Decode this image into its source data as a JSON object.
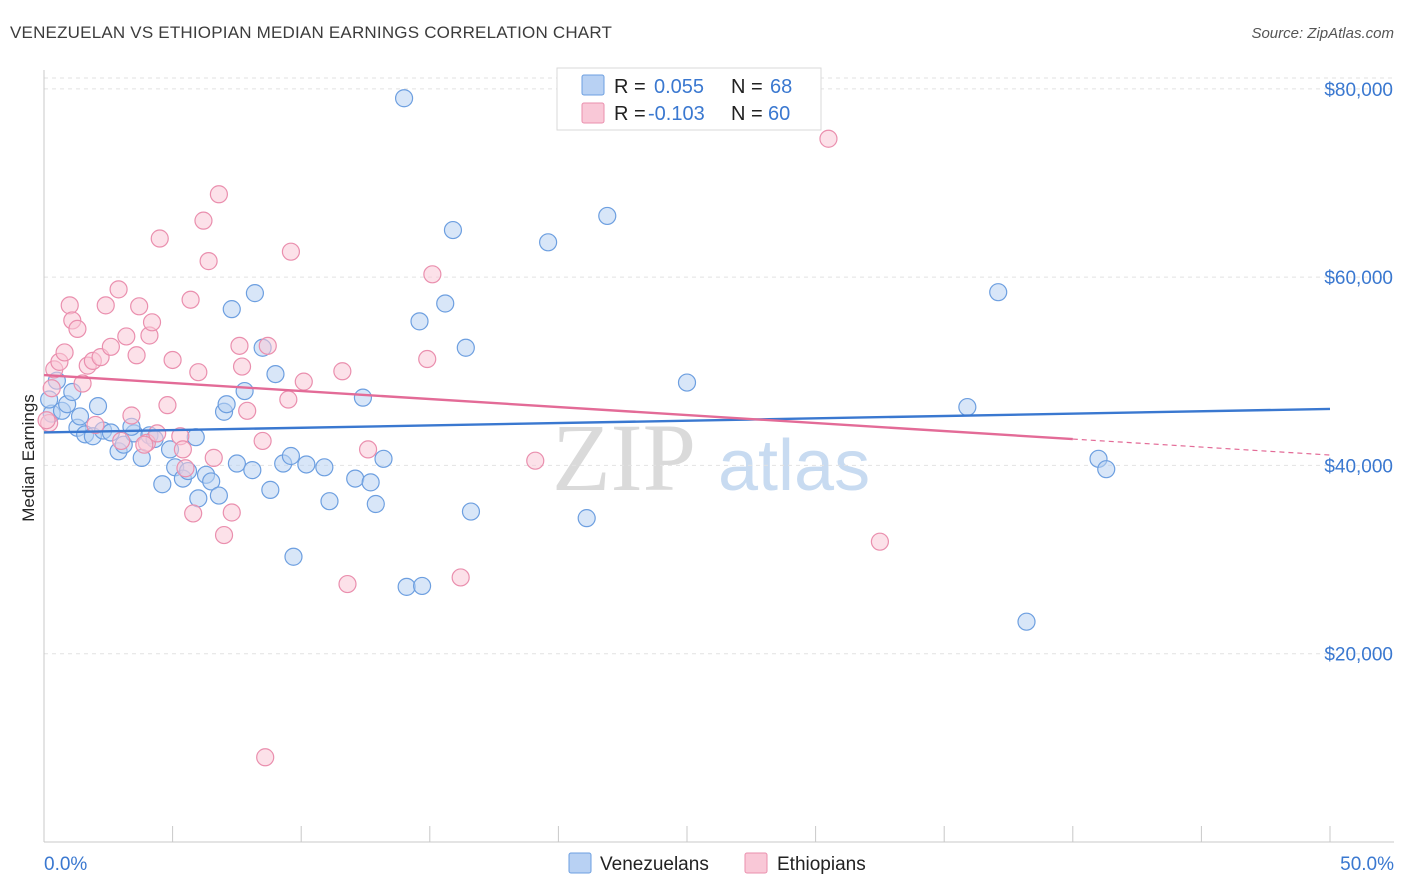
{
  "header": {
    "title": "VENEZUELAN VS ETHIOPIAN MEDIAN EARNINGS CORRELATION CHART",
    "source": "Source: ZipAtlas.com"
  },
  "watermark": {
    "zip": "ZIP",
    "atlas": "atlas"
  },
  "legend": {
    "r_label": "R =",
    "n_label": "N =",
    "rows": [
      {
        "r": "0.055",
        "n": "68",
        "fill": "#b8d1f3",
        "stroke": "#6d9fe0"
      },
      {
        "r": "-0.103",
        "n": "60",
        "fill": "#f9c8d7",
        "stroke": "#ea8fae"
      }
    ]
  },
  "bottom_legend": [
    {
      "label": "Venezuelans",
      "fill": "#b8d1f3",
      "stroke": "#6d9fe0"
    },
    {
      "label": "Ethiopians",
      "fill": "#f9c8d7",
      "stroke": "#ea8fae"
    }
  ],
  "chart_data": {
    "type": "scatter",
    "title": "VENEZUELAN VS ETHIOPIAN MEDIAN EARNINGS CORRELATION CHART",
    "xlabel": "",
    "ylabel": "Median Earnings",
    "xlim": [
      0,
      50
    ],
    "ylim": [
      0,
      82000
    ],
    "x_tick_labels": [
      "0.0%",
      "50.0%"
    ],
    "y_ticks": [
      20000,
      40000,
      60000,
      80000
    ],
    "y_tick_labels": [
      "$20,000",
      "$40,000",
      "$60,000",
      "$80,000"
    ],
    "grid": true,
    "series": [
      {
        "name": "Venezuelans",
        "color": "#3a78d0",
        "fill": "#b8d1f3",
        "stroke": "#6d9fe0",
        "trend": {
          "x0": 0,
          "y0": 43500,
          "x1": 50,
          "y1": 46000,
          "dashed_from": null
        },
        "points": [
          [
            0.3,
            45500
          ],
          [
            0.5,
            49000
          ],
          [
            0.7,
            45800
          ],
          [
            0.9,
            46500
          ],
          [
            1.1,
            47800
          ],
          [
            1.3,
            44000
          ],
          [
            1.6,
            43300
          ],
          [
            1.9,
            43100
          ],
          [
            2.1,
            46300
          ],
          [
            2.3,
            43700
          ],
          [
            2.6,
            43500
          ],
          [
            2.9,
            41500
          ],
          [
            3.1,
            42200
          ],
          [
            3.5,
            43400
          ],
          [
            3.8,
            40800
          ],
          [
            4.1,
            43200
          ],
          [
            4.3,
            42800
          ],
          [
            4.6,
            38000
          ],
          [
            4.9,
            41700
          ],
          [
            5.1,
            39800
          ],
          [
            5.4,
            38600
          ],
          [
            5.6,
            39400
          ],
          [
            5.9,
            43000
          ],
          [
            6.0,
            36500
          ],
          [
            6.3,
            39000
          ],
          [
            6.5,
            38300
          ],
          [
            6.8,
            36800
          ],
          [
            7.0,
            45700
          ],
          [
            7.1,
            46500
          ],
          [
            7.3,
            56600
          ],
          [
            7.5,
            40200
          ],
          [
            7.8,
            47900
          ],
          [
            8.1,
            39500
          ],
          [
            8.2,
            58300
          ],
          [
            8.5,
            52500
          ],
          [
            8.8,
            37400
          ],
          [
            9.0,
            49700
          ],
          [
            9.3,
            40200
          ],
          [
            9.6,
            41000
          ],
          [
            9.7,
            30300
          ],
          [
            10.2,
            40100
          ],
          [
            10.9,
            39800
          ],
          [
            11.1,
            36200
          ],
          [
            12.1,
            38600
          ],
          [
            12.4,
            47200
          ],
          [
            12.7,
            38200
          ],
          [
            12.9,
            35900
          ],
          [
            13.2,
            40700
          ],
          [
            14.0,
            79000
          ],
          [
            14.1,
            27100
          ],
          [
            14.6,
            55300
          ],
          [
            14.7,
            27200
          ],
          [
            15.6,
            57200
          ],
          [
            15.9,
            65000
          ],
          [
            16.4,
            52500
          ],
          [
            16.6,
            35100
          ],
          [
            19.6,
            63700
          ],
          [
            21.1,
            34400
          ],
          [
            21.9,
            66500
          ],
          [
            25.0,
            48800
          ],
          [
            35.9,
            46200
          ],
          [
            37.1,
            58400
          ],
          [
            38.2,
            23400
          ],
          [
            41.0,
            40700
          ],
          [
            41.3,
            39600
          ],
          [
            0.2,
            47000
          ],
          [
            1.4,
            45200
          ],
          [
            3.4,
            44100
          ]
        ]
      },
      {
        "name": "Ethiopians",
        "color": "#e36b97",
        "fill": "#f9c8d7",
        "stroke": "#ea8fae",
        "trend": {
          "x0": 0,
          "y0": 49600,
          "x1": 40,
          "y1": 42800,
          "dashed_from": 40,
          "x_end": 50,
          "y_end": 41100
        },
        "points": [
          [
            0.2,
            44500
          ],
          [
            0.3,
            48200
          ],
          [
            0.4,
            50200
          ],
          [
            0.6,
            51000
          ],
          [
            0.8,
            52000
          ],
          [
            1.0,
            57000
          ],
          [
            1.1,
            55400
          ],
          [
            1.3,
            54500
          ],
          [
            1.5,
            48700
          ],
          [
            1.7,
            50600
          ],
          [
            1.9,
            51100
          ],
          [
            2.0,
            44300
          ],
          [
            2.2,
            51500
          ],
          [
            2.4,
            57000
          ],
          [
            2.6,
            52600
          ],
          [
            2.9,
            58700
          ],
          [
            3.0,
            42600
          ],
          [
            3.2,
            53700
          ],
          [
            3.4,
            45300
          ],
          [
            3.6,
            51700
          ],
          [
            3.7,
            56900
          ],
          [
            4.0,
            42400
          ],
          [
            4.1,
            53800
          ],
          [
            4.2,
            55200
          ],
          [
            4.4,
            43400
          ],
          [
            4.5,
            64100
          ],
          [
            4.8,
            46400
          ],
          [
            5.0,
            51200
          ],
          [
            5.3,
            43100
          ],
          [
            5.4,
            41700
          ],
          [
            5.7,
            57600
          ],
          [
            5.8,
            34900
          ],
          [
            6.0,
            49900
          ],
          [
            6.2,
            66000
          ],
          [
            6.4,
            61700
          ],
          [
            6.6,
            40800
          ],
          [
            6.8,
            68800
          ],
          [
            7.0,
            32600
          ],
          [
            7.3,
            35000
          ],
          [
            7.6,
            52700
          ],
          [
            7.7,
            50500
          ],
          [
            7.9,
            45800
          ],
          [
            8.5,
            42600
          ],
          [
            8.7,
            52700
          ],
          [
            8.6,
            9000
          ],
          [
            9.5,
            47000
          ],
          [
            9.6,
            62700
          ],
          [
            10.1,
            48900
          ],
          [
            11.6,
            50000
          ],
          [
            11.8,
            27400
          ],
          [
            12.6,
            41700
          ],
          [
            14.9,
            51300
          ],
          [
            15.1,
            60300
          ],
          [
            16.2,
            28100
          ],
          [
            19.1,
            40500
          ],
          [
            30.5,
            74700
          ],
          [
            32.5,
            31900
          ],
          [
            0.1,
            44800
          ],
          [
            3.9,
            42200
          ],
          [
            5.5,
            39700
          ]
        ]
      }
    ]
  }
}
